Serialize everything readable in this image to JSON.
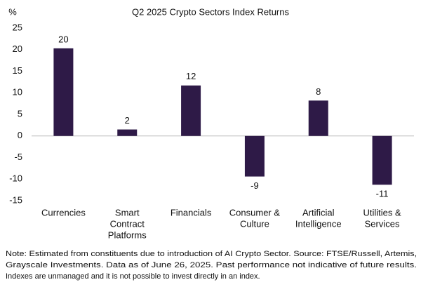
{
  "chart_data": {
    "type": "bar",
    "title": "Q2 2025 Crypto Sectors Index Returns",
    "y_label": "%",
    "categories": [
      [
        "Currencies"
      ],
      [
        "Smart",
        "Contract",
        "Platforms"
      ],
      [
        "Financials"
      ],
      [
        "Consumer &",
        "Culture"
      ],
      [
        "Artificial",
        "Intelligence"
      ],
      [
        "Utilities &",
        "Services"
      ]
    ],
    "values": [
      20.3,
      1.5,
      11.7,
      -9.4,
      8.2,
      -11.3
    ],
    "value_labels": [
      "20",
      "2",
      "12",
      "-9",
      "8",
      "-11"
    ],
    "color": "#2e1a47",
    "ylim": [
      -15,
      25
    ],
    "yticks": [
      -15,
      -10,
      -5,
      0,
      5,
      10,
      15,
      20,
      25
    ],
    "grid": false,
    "note": [
      "Note: Estimated from constituents due to introduction of AI Crypto Sector. Source: FTSE/Russell, Artemis,",
      "Grayscale Investments. Data as of June 26, 2025. Past performance not indicative of future results.",
      "Indexes are unmanaged and it is not possible to invest directly in an index."
    ]
  }
}
